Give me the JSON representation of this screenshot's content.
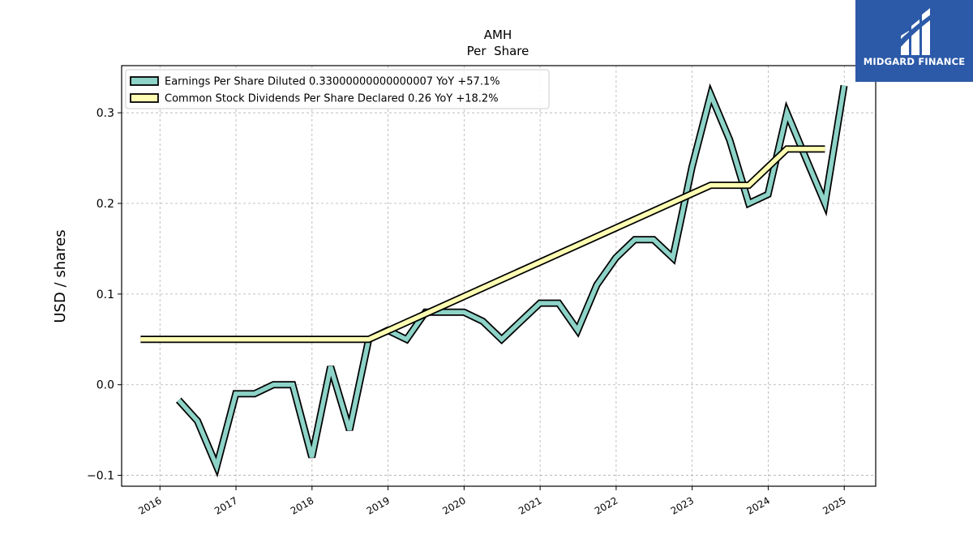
{
  "brand": {
    "name": "MIDGARD FINANCE",
    "bg_color": "#2c5aa8"
  },
  "chart_data": {
    "type": "line",
    "title": "AMH",
    "subtitle": "Per  Share",
    "xlabel": "",
    "ylabel": "USD / shares",
    "x_ticks": [
      "2016",
      "2017",
      "2018",
      "2019",
      "2020",
      "2021",
      "2022",
      "2023",
      "2024",
      "2025"
    ],
    "y_ticks": [
      "−0.1",
      "0.0",
      "0.1",
      "0.2",
      "0.3"
    ],
    "xlim": [
      "2015-07-01",
      "2025-06-01"
    ],
    "ylim": [
      -0.112,
      0.352
    ],
    "grid": true,
    "legend_position": "upper-left",
    "series": [
      {
        "name": "Earnings Per Share Diluted  0.33000000000000007 YoY +57.1%",
        "color": "#8dd3c7",
        "points": [
          [
            "2016-03-31",
            -0.017
          ],
          [
            "2016-06-30",
            -0.04
          ],
          [
            "2016-09-30",
            -0.09
          ],
          [
            "2016-12-31",
            -0.01
          ],
          [
            "2017-03-31",
            -0.01
          ],
          [
            "2017-06-30",
            0.0
          ],
          [
            "2017-09-30",
            0.0
          ],
          [
            "2017-12-31",
            -0.08
          ],
          [
            "2018-03-31",
            0.02
          ],
          [
            "2018-06-30",
            -0.05
          ],
          [
            "2018-09-30",
            0.05
          ],
          [
            "2018-12-31",
            0.06
          ],
          [
            "2019-03-31",
            0.05
          ],
          [
            "2019-06-30",
            0.08
          ],
          [
            "2019-09-30",
            0.08
          ],
          [
            "2019-12-31",
            0.08
          ],
          [
            "2020-03-31",
            0.07
          ],
          [
            "2020-06-30",
            0.05
          ],
          [
            "2020-09-30",
            0.07
          ],
          [
            "2020-12-31",
            0.09
          ],
          [
            "2021-03-31",
            0.09
          ],
          [
            "2021-06-30",
            0.06
          ],
          [
            "2021-09-30",
            0.11
          ],
          [
            "2021-12-31",
            0.14
          ],
          [
            "2022-03-31",
            0.16
          ],
          [
            "2022-06-30",
            0.16
          ],
          [
            "2022-09-30",
            0.14
          ],
          [
            "2022-12-31",
            0.24
          ],
          [
            "2023-03-31",
            0.32
          ],
          [
            "2023-06-30",
            0.27
          ],
          [
            "2023-09-30",
            0.2
          ],
          [
            "2023-12-31",
            0.21
          ],
          [
            "2024-03-31",
            0.3
          ],
          [
            "2024-06-30",
            0.25
          ],
          [
            "2024-09-30",
            0.2
          ],
          [
            "2024-12-31",
            0.33
          ]
        ]
      },
      {
        "name": "Common Stock Dividends Per Share Declared  0.26 YoY +18.2%",
        "color": "#ffffb3",
        "points": [
          [
            "2015-09-30",
            0.05
          ],
          [
            "2018-09-30",
            0.05
          ],
          [
            "2023-03-31",
            0.22
          ],
          [
            "2023-09-30",
            0.22
          ],
          [
            "2024-03-31",
            0.26
          ],
          [
            "2024-09-30",
            0.26
          ]
        ]
      }
    ]
  }
}
